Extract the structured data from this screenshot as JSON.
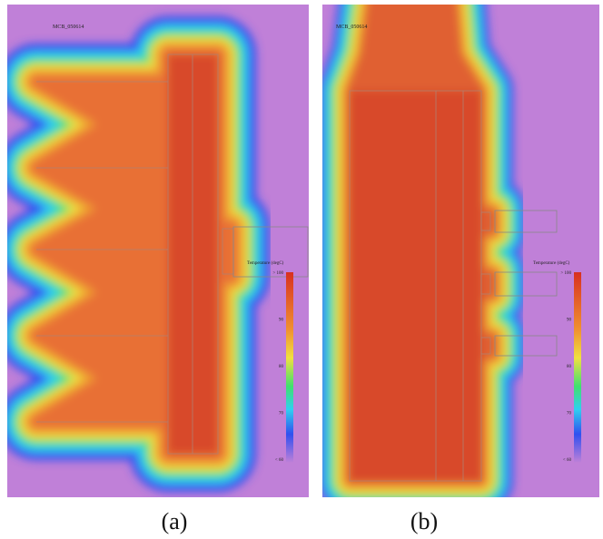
{
  "panels": [
    {
      "tag": "MCB_050614",
      "legend": {
        "title": "Temperature (degC)",
        "ticks": [
          "> 100",
          "90",
          "80",
          "70",
          "< 60"
        ]
      },
      "caption": "(a)"
    },
    {
      "tag": "MCB_050614",
      "legend": {
        "title": "Temperature (degC)",
        "ticks": [
          "> 100",
          "90",
          "80",
          "70",
          "< 60"
        ]
      },
      "caption": "(b)"
    }
  ]
}
